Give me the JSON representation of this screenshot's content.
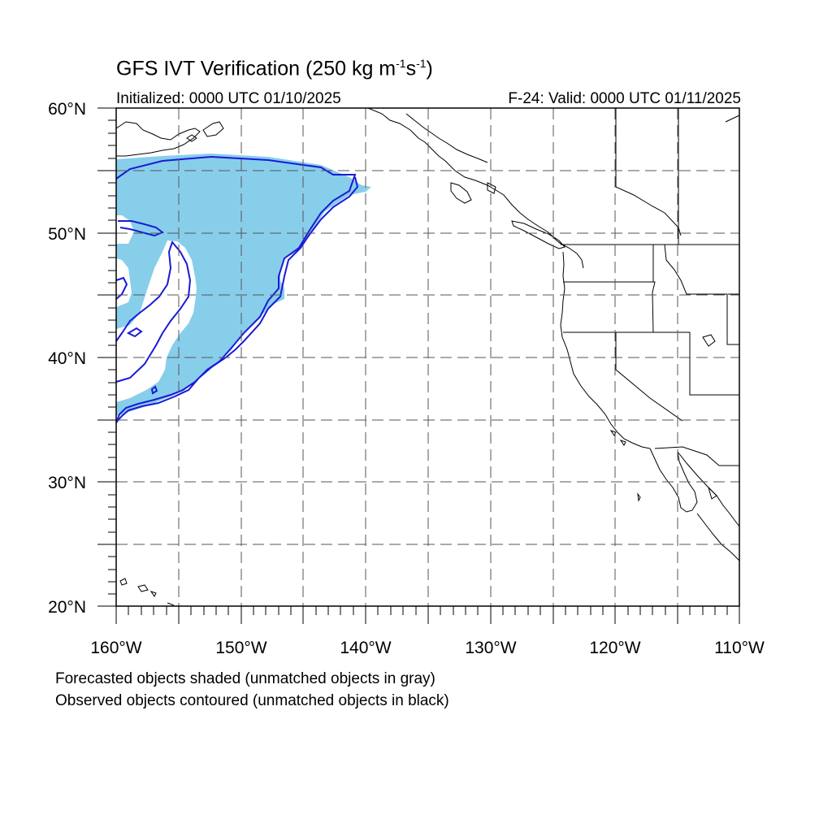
{
  "title": {
    "main": "GFS IVT Verification (250 kg m",
    "sup1": "-1",
    "mid": "s",
    "sup2": "-1",
    "end": ")"
  },
  "initialized": "Initialized: 0000 UTC 01/10/2025",
  "valid": "F-24: Valid: 0000 UTC 01/11/2025",
  "map": {
    "lat_range": [
      20,
      60
    ],
    "lon_range": [
      -160,
      -110
    ],
    "lat_labels": [
      "20°N",
      "30°N",
      "40°N",
      "50°N",
      "60°N"
    ],
    "lon_labels": [
      "160°W",
      "150°W",
      "140°W",
      "130°W",
      "120°W",
      "110°W"
    ],
    "grid": "dashed every 5°",
    "forecast_fill_color": "#87ceeb",
    "observed_contour_color": "#1a1ad6",
    "coastline_color": "#000000"
  },
  "legend": {
    "line1": "Forecasted objects shaded (unmatched objects in gray)",
    "line2": "Observed objects contoured (unmatched objects in black)"
  }
}
